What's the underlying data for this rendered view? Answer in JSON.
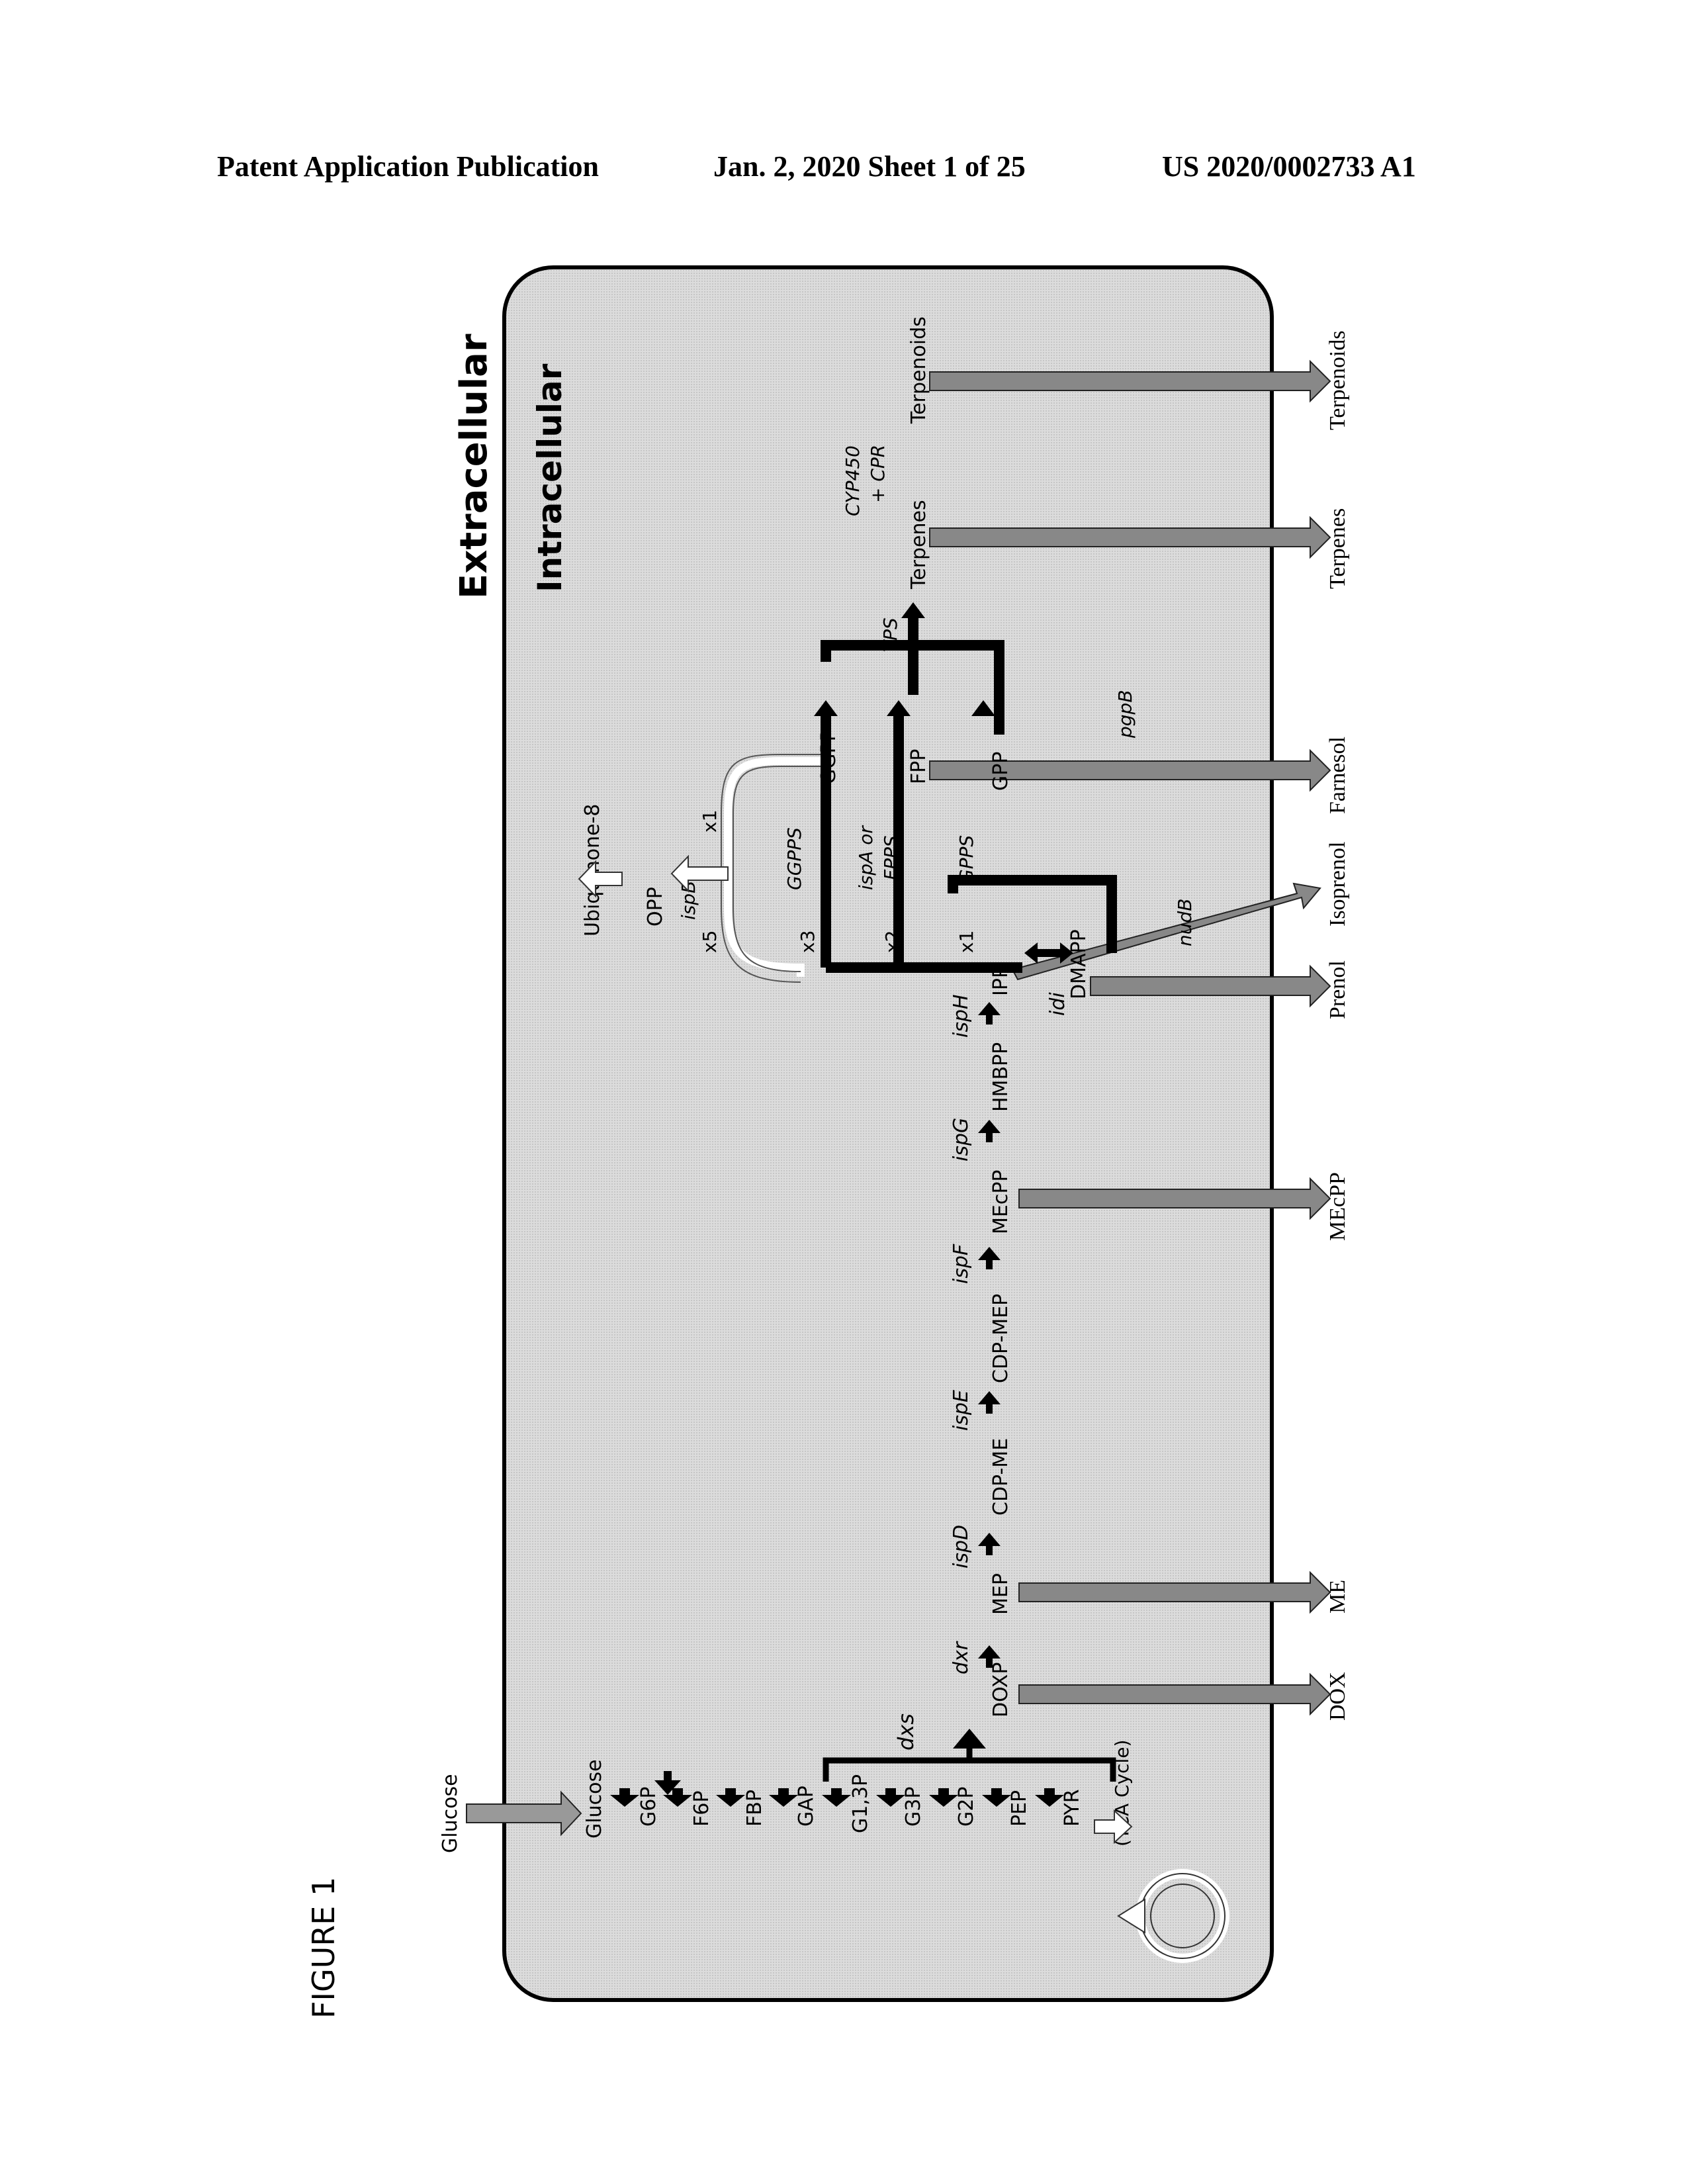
{
  "header": {
    "left": "Patent Application Publication",
    "date_sheet": "Jan. 2, 2020   Sheet 1 of 25",
    "number": "US 2020/0002733 A1"
  },
  "figure": {
    "label": "FIGURE 1",
    "extracellular": "Extracellular",
    "intracellular": "Intracellular",
    "glucose_outside": "Glucose",
    "glycolysis": [
      "Glucose",
      "G6P",
      "F6P",
      "FBP",
      "GAP",
      "G1,3P",
      "G3P",
      "G2P",
      "PEP",
      "PYR"
    ],
    "tca": "(TCA Cycle)",
    "mep_pathway": [
      "DOXP",
      "MEP",
      "CDP-ME",
      "CDP-MEP",
      "MEcPP",
      "HMBPP",
      "IPP"
    ],
    "enzymes": {
      "dxs": "dxs",
      "dxr": "dxr",
      "ispD": "ispD",
      "ispE": "ispE",
      "ispF": "ispF",
      "ispG": "ispG",
      "ispH": "ispH",
      "idi": "idi",
      "nudB": "nudB",
      "ispB": "ispB",
      "gpps": "GPPS",
      "fpps_line1": "ispA or",
      "fpps_line2": "FPPS",
      "ggpps": "GGPPS",
      "tps": "TPS",
      "cyp_line1": "CYP450",
      "cyp_line2": "+ CPR",
      "pgpB": "pgpB"
    },
    "intermediates": {
      "dmapp": "DMAPP",
      "gpp": "GPP",
      "fpp": "FPP",
      "ggpp": "GGPP",
      "terpenes": "Terpenes",
      "terpenoids": "Terpenoids",
      "opp": "OPP",
      "ubiquinone": "Ubiquinone-8"
    },
    "multipliers": {
      "x1a": "x1",
      "x2": "x2",
      "x3": "x3",
      "x5": "x5",
      "x1b": "x1"
    },
    "products": [
      "DOX",
      "ME",
      "MEcPP",
      "Prenol",
      "Isoprenol",
      "Farnesol",
      "Terpenes",
      "Terpenoids"
    ]
  }
}
